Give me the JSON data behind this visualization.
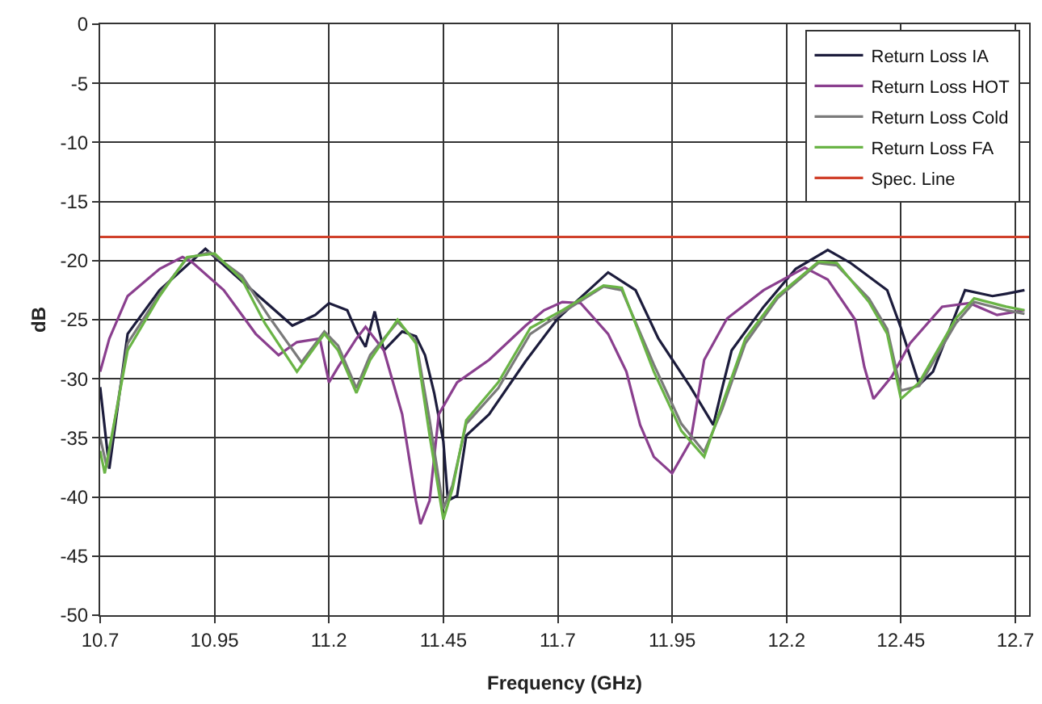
{
  "chart_data": {
    "type": "line",
    "xlabel": "Frequency (GHz)",
    "ylabel": "dB",
    "xlim": [
      10.7,
      12.73
    ],
    "xticks": [
      10.7,
      10.95,
      11.2,
      11.45,
      11.7,
      11.95,
      12.2,
      12.45,
      12.7
    ],
    "ylim": [
      -50,
      0
    ],
    "yticks": [
      -50,
      -45,
      -40,
      -35,
      -30,
      -25,
      -20,
      -15,
      -10,
      -5,
      0
    ],
    "grid": true,
    "legend": "top right",
    "marker": "none",
    "line_style": "solid",
    "series": [
      {
        "name": "Return Loss IA",
        "color": "#1c1c3c",
        "x": [
          10.7,
          10.72,
          10.76,
          10.83,
          10.93,
          11.02,
          11.12,
          11.17,
          11.2,
          11.24,
          11.26,
          11.28,
          11.3,
          11.32,
          11.36,
          11.39,
          11.41,
          11.43,
          11.45,
          11.46,
          11.48,
          11.5,
          11.55,
          11.63,
          11.7,
          11.81,
          11.87,
          11.92,
          11.99,
          12.04,
          12.06,
          12.08,
          12.15,
          12.22,
          12.29,
          12.34,
          12.42,
          12.45,
          12.49,
          12.52,
          12.59,
          12.65,
          12.68,
          12.72
        ],
        "values": [
          -30.7,
          -37.6,
          -26.2,
          -22.5,
          -19,
          -22.1,
          -25.5,
          -24.6,
          -23.6,
          -24.2,
          -26,
          -27.3,
          -24.3,
          -27.6,
          -26,
          -26.4,
          -28,
          -31.2,
          -35.3,
          -40.3,
          -39.9,
          -34.8,
          -33,
          -28.5,
          -24.9,
          -21,
          -22.5,
          -26.6,
          -30.7,
          -33.9,
          -30.7,
          -27.6,
          -23.9,
          -20.7,
          -19.1,
          -20.2,
          -22.5,
          -25.7,
          -30.5,
          -29.4,
          -22.5,
          -23,
          -22.8,
          -22.5
        ]
      },
      {
        "name": "Return Loss HOT",
        "color": "#8a3f8e",
        "x": [
          10.7,
          10.72,
          10.76,
          10.83,
          10.88,
          10.9,
          10.97,
          11.04,
          11.09,
          11.13,
          11.18,
          11.2,
          11.22,
          11.26,
          11.28,
          11.32,
          11.36,
          11.39,
          11.4,
          11.42,
          11.44,
          11.48,
          11.55,
          11.63,
          11.67,
          11.71,
          11.75,
          11.81,
          11.85,
          11.88,
          11.91,
          11.95,
          11.99,
          12.02,
          12.07,
          12.15,
          12.24,
          12.29,
          12.35,
          12.37,
          12.39,
          12.43,
          12.47,
          12.54,
          12.6,
          12.66,
          12.72
        ],
        "values": [
          -29.4,
          -26.6,
          -23,
          -20.7,
          -19.7,
          -20.1,
          -22.5,
          -26.2,
          -28,
          -26.9,
          -26.6,
          -30.3,
          -29,
          -26.6,
          -25.6,
          -27.6,
          -33,
          -40.3,
          -42.3,
          -40.3,
          -33,
          -30.3,
          -28.4,
          -25.5,
          -24.2,
          -23.5,
          -23.6,
          -26.2,
          -29.4,
          -33.9,
          -36.6,
          -38,
          -35.3,
          -28.4,
          -24.9,
          -22.5,
          -20.6,
          -21.6,
          -25,
          -29,
          -31.7,
          -29.8,
          -27,
          -23.9,
          -23.6,
          -24.6,
          -24.2
        ]
      },
      {
        "name": "Return Loss Cold",
        "color": "#7a7a7a",
        "x": [
          10.7,
          10.715,
          10.76,
          10.83,
          10.89,
          10.94,
          11.01,
          11.07,
          11.14,
          11.19,
          11.22,
          11.26,
          11.29,
          11.35,
          11.39,
          11.42,
          11.45,
          11.47,
          11.5,
          11.57,
          11.64,
          11.71,
          11.8,
          11.84,
          11.91,
          11.97,
          12.02,
          12.06,
          12.11,
          12.18,
          12.27,
          12.31,
          12.38,
          12.42,
          12.45,
          12.49,
          12.57,
          12.61,
          12.68,
          12.72
        ],
        "values": [
          -35,
          -37.5,
          -27,
          -22.8,
          -19.8,
          -19.3,
          -21.3,
          -24.8,
          -28.6,
          -26,
          -27.2,
          -30.8,
          -28,
          -25.2,
          -26.8,
          -33.5,
          -41,
          -39,
          -33.8,
          -30.8,
          -26.2,
          -24.4,
          -22.2,
          -22.5,
          -28.8,
          -33.8,
          -36.2,
          -32.5,
          -27,
          -23.2,
          -20.2,
          -20.4,
          -23.2,
          -25.8,
          -31,
          -30.6,
          -25.3,
          -23.5,
          -24.2,
          -24.5
        ]
      },
      {
        "name": "Return Loss FA",
        "color": "#6ab446",
        "x": [
          10.7,
          10.71,
          10.76,
          10.83,
          10.89,
          10.95,
          11.01,
          11.06,
          11.13,
          11.19,
          11.22,
          11.26,
          11.29,
          11.35,
          11.39,
          11.42,
          11.45,
          11.47,
          11.5,
          11.57,
          11.64,
          11.71,
          11.8,
          11.84,
          11.91,
          11.97,
          12.02,
          12.06,
          12.11,
          12.18,
          12.27,
          12.31,
          12.38,
          12.42,
          12.45,
          12.49,
          12.57,
          12.61,
          12.68,
          12.72
        ],
        "values": [
          -36.1,
          -38,
          -27.6,
          -23,
          -19.7,
          -19.4,
          -21.6,
          -25.3,
          -29.4,
          -26.2,
          -27.6,
          -31.2,
          -28.4,
          -25,
          -27,
          -34.8,
          -41.9,
          -39.3,
          -33.5,
          -30.3,
          -25.7,
          -24.2,
          -22.1,
          -22.3,
          -29.4,
          -34.4,
          -36.6,
          -32.1,
          -26.6,
          -23,
          -20.1,
          -20.2,
          -23.5,
          -26.2,
          -31.7,
          -30.3,
          -24.9,
          -23.2,
          -23.9,
          -24.2
        ]
      },
      {
        "name": "Spec. Line",
        "color": "#d0402a",
        "x": [
          10.7,
          12.73
        ],
        "values": [
          -18,
          -18
        ]
      }
    ]
  }
}
